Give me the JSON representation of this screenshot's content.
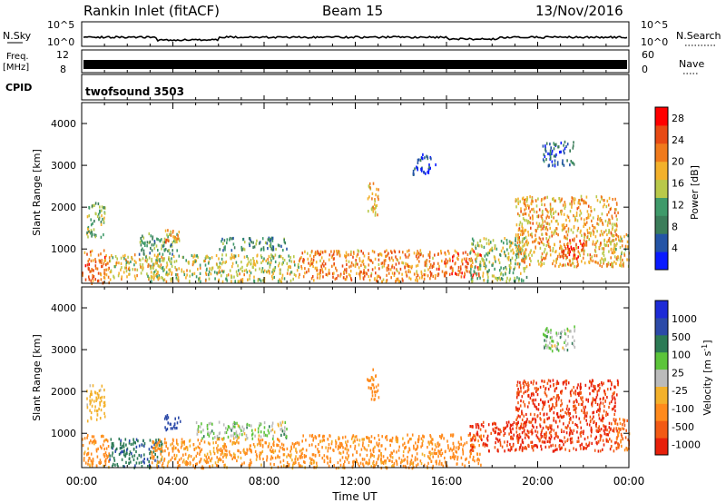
{
  "header": {
    "station": "Rankin Inlet (fitACF)",
    "beam": "Beam 15",
    "date": "13/Nov/2016"
  },
  "top_strip": {
    "left_label_top": "N.Sky",
    "left_tick_high": "10^5",
    "left_tick_low": "10^0",
    "right_tick_high": "10^5",
    "right_tick_low": "10^0",
    "right_label": "N.Search"
  },
  "freq_strip": {
    "left_label_line1": "Freq.",
    "left_label_line2": "[MHz]",
    "left_tick_high": "12",
    "left_tick_low": "8",
    "right_tick_high": "60",
    "right_tick_low": "0",
    "right_label": "Nave"
  },
  "cpid_strip": {
    "left_label": "CPID",
    "program": "twofsound 3503"
  },
  "x_axis": {
    "title": "Time UT",
    "tick_labels": [
      "00:00",
      "04:00",
      "08:00",
      "12:00",
      "16:00",
      "20:00",
      "00:00"
    ]
  },
  "colors": {
    "power_scale": [
      "#0a1bff",
      "#2454a6",
      "#3b7d5a",
      "#3f9a6a",
      "#b9c94a",
      "#f3b12b",
      "#f07a1c",
      "#e84a14",
      "#ff0000"
    ],
    "velocity_scale": [
      "#1d2bd7",
      "#2c4aa8",
      "#2c7a55",
      "#5cc43a",
      "#bbbbbb",
      "#f3b12b",
      "#ff8a1c",
      "#f25a14",
      "#e8200a"
    ]
  },
  "chart_data": [
    {
      "type": "heatmap",
      "title": "",
      "xlabel": "Time UT",
      "ylabel": "Slant Range [km]",
      "xlim": [
        0,
        24
      ],
      "ylim": [
        180,
        4500
      ],
      "y_ticks": [
        1000,
        2000,
        3000,
        4000
      ],
      "colorbar": {
        "label": "Power [dB]",
        "ticks": [
          4,
          8,
          12,
          16,
          20,
          24,
          28
        ],
        "range": [
          0,
          30
        ]
      },
      "regions": [
        {
          "t0": 0.0,
          "t1": 1.2,
          "r0": 200,
          "r1": 1000,
          "value": 22
        },
        {
          "t0": 0.2,
          "t1": 1.0,
          "r0": 1300,
          "r1": 2200,
          "value": 13
        },
        {
          "t0": 1.2,
          "t1": 3.5,
          "r0": 300,
          "r1": 900,
          "value": 17
        },
        {
          "t0": 2.5,
          "t1": 4.2,
          "r0": 900,
          "r1": 1400,
          "value": 11
        },
        {
          "t0": 3.6,
          "t1": 4.3,
          "r0": 1100,
          "r1": 1500,
          "value": 20
        },
        {
          "t0": 3.0,
          "t1": 9.5,
          "r0": 250,
          "r1": 900,
          "value": 16
        },
        {
          "t0": 6.0,
          "t1": 9.0,
          "r0": 1000,
          "r1": 1300,
          "value": 9
        },
        {
          "t0": 9.5,
          "t1": 15.5,
          "r0": 250,
          "r1": 1000,
          "value": 21
        },
        {
          "t0": 12.5,
          "t1": 13.0,
          "r0": 1800,
          "r1": 2600,
          "value": 18
        },
        {
          "t0": 15.5,
          "t1": 17.5,
          "r0": 350,
          "r1": 1000,
          "value": 23
        },
        {
          "t0": 17.0,
          "t1": 19.5,
          "r0": 250,
          "r1": 1300,
          "value": 14
        },
        {
          "t0": 19.0,
          "t1": 23.5,
          "r0": 600,
          "r1": 2300,
          "value": 19
        },
        {
          "t0": 21.0,
          "t1": 22.0,
          "r0": 800,
          "r1": 1300,
          "value": 26
        },
        {
          "t0": 20.2,
          "t1": 21.6,
          "r0": 3000,
          "r1": 3600,
          "value": 6
        },
        {
          "t0": 14.5,
          "t1": 15.5,
          "r0": 2800,
          "r1": 3300,
          "value": 5
        },
        {
          "t0": 23.3,
          "t1": 24.0,
          "r0": 600,
          "r1": 1400,
          "value": 17
        }
      ]
    },
    {
      "type": "heatmap",
      "title": "",
      "xlabel": "Time UT",
      "ylabel": "Slant Range [km]",
      "xlim": [
        0,
        24
      ],
      "ylim": [
        180,
        4500
      ],
      "y_ticks": [
        1000,
        2000,
        3000,
        4000
      ],
      "colorbar": {
        "label": "Velocity [m s^-1]",
        "ticks": [
          1000,
          500,
          100,
          25,
          -25,
          -100,
          -500,
          -1000
        ]
      },
      "regions": [
        {
          "t0": 0.0,
          "t1": 1.2,
          "r0": 200,
          "r1": 1000,
          "value": -150
        },
        {
          "t0": 0.2,
          "t1": 1.0,
          "r0": 1300,
          "r1": 2200,
          "value": -60
        },
        {
          "t0": 1.2,
          "t1": 3.5,
          "r0": 200,
          "r1": 900,
          "value": 80
        },
        {
          "t0": 3.6,
          "t1": 4.3,
          "r0": 1100,
          "r1": 1500,
          "value": 300
        },
        {
          "t0": 5.0,
          "t1": 9.0,
          "r0": 900,
          "r1": 1300,
          "value": 0
        },
        {
          "t0": 3.0,
          "t1": 9.5,
          "r0": 200,
          "r1": 900,
          "value": -120
        },
        {
          "t0": 9.5,
          "t1": 15.5,
          "r0": 200,
          "r1": 1000,
          "value": -130
        },
        {
          "t0": 12.5,
          "t1": 13.0,
          "r0": 1800,
          "r1": 2600,
          "value": -180
        },
        {
          "t0": 15.5,
          "t1": 17.5,
          "r0": 250,
          "r1": 1000,
          "value": -200
        },
        {
          "t0": 17.0,
          "t1": 19.5,
          "r0": 600,
          "r1": 1300,
          "value": -700
        },
        {
          "t0": 19.0,
          "t1": 23.5,
          "r0": 600,
          "r1": 2300,
          "value": -600
        },
        {
          "t0": 20.2,
          "t1": 21.6,
          "r0": 3000,
          "r1": 3600,
          "value": 0
        },
        {
          "t0": 23.3,
          "t1": 24.0,
          "r0": 600,
          "r1": 1400,
          "value": -300
        }
      ]
    }
  ]
}
